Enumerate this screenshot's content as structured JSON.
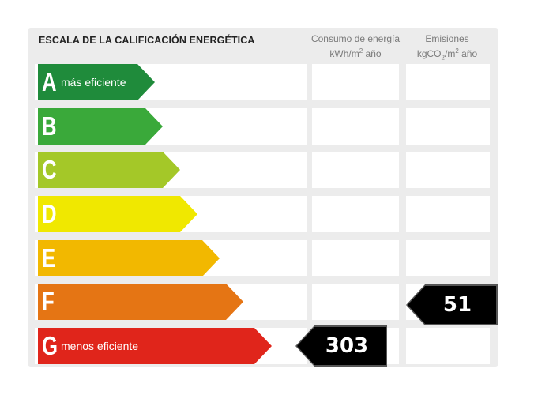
{
  "title": "ESCALA DE LA CALIFICACIÓN ENERGÉTICA",
  "columns": {
    "consumo": {
      "line1": "Consumo de energía",
      "line2_prefix": "kWh/m",
      "line2_sup": "2",
      "line2_suffix": " año"
    },
    "emisiones": {
      "line1": "Emisiones",
      "line2_prefix": "kgCO",
      "line2_sub": "2",
      "line2_mid": "/m",
      "line2_sup": "2",
      "line2_suffix": " año"
    }
  },
  "ratings": [
    {
      "letter": "A",
      "label": "más eficiente",
      "color": "#1f8b3b"
    },
    {
      "letter": "B",
      "label": "",
      "color": "#3aa93a"
    },
    {
      "letter": "C",
      "label": "",
      "color": "#a4c828"
    },
    {
      "letter": "D",
      "label": "",
      "color": "#f0e800"
    },
    {
      "letter": "E",
      "label": "",
      "color": "#f2b800"
    },
    {
      "letter": "F",
      "label": "",
      "color": "#e57514"
    },
    {
      "letter": "G",
      "label": "menos eficiente",
      "color": "#e0251b"
    }
  ],
  "results": {
    "consumo": {
      "value": "303",
      "rating": "G"
    },
    "emisiones": {
      "value": "51",
      "rating": "F"
    }
  }
}
